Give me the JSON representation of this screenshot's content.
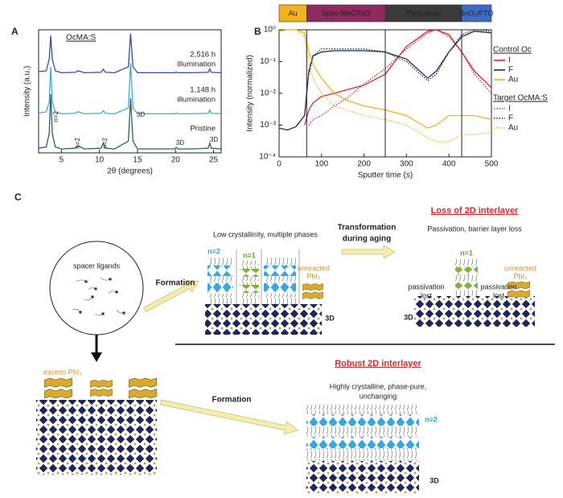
{
  "panel_labels": [
    "A",
    "B",
    "C"
  ],
  "chart_data": [
    {
      "type": "line",
      "title": "OcMA:S",
      "xlabel": "2θ (degrees)",
      "ylabel": "Intensity (a.u.)",
      "xlim": [
        2,
        26
      ],
      "xticks": [
        5,
        10,
        15,
        20,
        25
      ],
      "ylim": [
        0,
        3.15
      ],
      "x": [
        2,
        3,
        3.4,
        3.6,
        3.8,
        4.2,
        5,
        6.8,
        7.2,
        8,
        10.2,
        10.5,
        10.8,
        12,
        13.8,
        14.1,
        14.4,
        15,
        18,
        19.9,
        20.1,
        20.3,
        22,
        24.3,
        24.5,
        24.7,
        26
      ],
      "series": [
        {
          "color": "#2f4fa0",
          "values": [
            2.08,
            2.1,
            2.4,
            3.0,
            2.4,
            2.1,
            2.05,
            2.06,
            2.1,
            2.05,
            2.06,
            2.14,
            2.06,
            2.05,
            2.2,
            3.05,
            2.2,
            2.05,
            2.05,
            2.05,
            2.07,
            2.05,
            2.05,
            2.06,
            2.15,
            2.06,
            2.05
          ]
        },
        {
          "color": "#3ab0c8",
          "values": [
            1.02,
            1.05,
            1.3,
            2.2,
            1.3,
            1.05,
            1.0,
            1.01,
            1.05,
            1.0,
            1.01,
            1.08,
            1.01,
            1.0,
            1.15,
            2.3,
            1.15,
            1.0,
            1.0,
            1.0,
            1.02,
            1.0,
            1.0,
            1.01,
            1.1,
            1.01,
            1.0
          ]
        },
        {
          "color": "#2a5d78",
          "values": [
            0.12,
            0.15,
            0.5,
            1.5,
            0.5,
            0.15,
            0.1,
            0.12,
            0.18,
            0.1,
            0.12,
            0.25,
            0.12,
            0.1,
            0.3,
            1.4,
            0.3,
            0.1,
            0.1,
            0.1,
            0.14,
            0.1,
            0.1,
            0.12,
            0.25,
            0.12,
            0.1
          ]
        }
      ],
      "curve_labels": [
        {
          "lines": [
            "2,516 h",
            "illumination"
          ],
          "color": "#2f4fa0"
        },
        {
          "lines": [
            "1,148 h",
            "illumination"
          ],
          "color": "#3ab0c8"
        },
        {
          "lines": [
            "Pristine"
          ],
          "color": "#2f4fa0"
        }
      ],
      "peak_labels": [
        "n=2",
        "n=2",
        "n=2",
        "3D",
        "3D",
        "3D"
      ]
    },
    {
      "type": "line",
      "xlabel": "Sputter time (s)",
      "ylabel": "Intensity (normalized)",
      "xlim": [
        0,
        500
      ],
      "xticks": [
        0,
        100,
        200,
        300,
        400,
        500
      ],
      "ylim": [
        0.0001,
        1
      ],
      "log_y": true,
      "yticks": [
        {
          "value": 0.0001,
          "label": "10⁻⁴"
        },
        {
          "value": 0.001,
          "label": "10⁻³"
        },
        {
          "value": 0.01,
          "label": "10⁻²"
        },
        {
          "value": 0.1,
          "label": "10⁻¹"
        },
        {
          "value": 1,
          "label": "10⁰"
        }
      ],
      "vlines": [
        65,
        250,
        430
      ],
      "layers": [
        {
          "name": "Au",
          "start": 0,
          "end": 65,
          "color": "#f2b21d"
        },
        {
          "name": "Spiro-MeOTAD",
          "start": 65,
          "end": 250,
          "color": "#8e2a5e"
        },
        {
          "name": "Perovskite",
          "start": 250,
          "end": 430,
          "color": "#3a3a3a"
        },
        {
          "name": "SnO₂/FTO",
          "start": 430,
          "end": 500,
          "color": "#3e6bc6"
        }
      ],
      "x": [
        0,
        20,
        40,
        60,
        70,
        80,
        100,
        130,
        160,
        200,
        250,
        300,
        350,
        370,
        400,
        430,
        460,
        500
      ],
      "series_groups": [
        {
          "name": "Control Oc",
          "style": "solid",
          "series": [
            {
              "name": "I",
              "color": "#e0252b",
              "values": [
                null,
                null,
                null,
                0.001,
                0.003,
                0.005,
                0.008,
                0.01,
                0.013,
                0.018,
                0.04,
                0.3,
                0.9,
                1,
                0.7,
                0.2,
                0.05,
                0.015
              ]
            },
            {
              "name": "F",
              "color": "#1e2858",
              "values": [
                0.0008,
                0.0007,
                0.0009,
                0.002,
                0.05,
                0.15,
                0.2,
                0.22,
                0.22,
                0.22,
                0.2,
                0.12,
                0.03,
                0.05,
                0.2,
                0.6,
                0.9,
                0.8
              ]
            },
            {
              "name": "Au",
              "color": "#f2b21d",
              "values": [
                0.9,
                1,
                1,
                0.8,
                0.2,
                0.08,
                0.03,
                0.01,
                0.006,
                0.004,
                0.003,
                0.002,
                0.0008,
                0.001,
                0.002,
                0.002,
                0.002,
                0.0015
              ]
            }
          ]
        },
        {
          "name": "Target OcMA:S",
          "style": "dotted",
          "series": [
            {
              "name": "I",
              "color": "#e0252b",
              "values": [
                null,
                null,
                null,
                null,
                0.001,
                0.0015,
                0.002,
                0.004,
                0.007,
                0.02,
                0.06,
                0.25,
                0.8,
                1,
                0.6,
                0.2,
                0.04,
                0.01
              ]
            },
            {
              "name": "F",
              "color": "#1e2858",
              "values": [
                null,
                null,
                null,
                null,
                0.04,
                0.15,
                0.25,
                0.25,
                0.25,
                0.25,
                0.2,
                0.1,
                0.025,
                0.04,
                0.2,
                0.7,
                1,
                0.9
              ]
            },
            {
              "name": "Au",
              "color": "#f2b21d",
              "values": [
                0.9,
                1,
                1,
                0.6,
                0.08,
                0.03,
                0.01,
                0.004,
                0.003,
                0.002,
                0.0015,
                0.001,
                0.0004,
                0.0003,
                0.0003,
                0.0005,
                0.0005,
                0.0006
              ]
            }
          ]
        }
      ]
    }
  ],
  "diagram": {
    "spacer": "spacer ligands",
    "formation_top": "Formation",
    "low": "Low crystallinity, multiple phases",
    "mid_n2": "n=2",
    "mid_n1": "n=1",
    "mid_pbi2": [
      "unreacted",
      "PbI₂"
    ],
    "mid_3d": "3D",
    "transform": [
      "Transformation",
      "during aging"
    ],
    "loss_title": "Loss of 2D interlayer",
    "loss_sub": "Passivation, barrier layer loss",
    "loss_n1": "n=1",
    "lost_left": [
      "passivation",
      "lost"
    ],
    "lost_right": [
      "passivation",
      "lost"
    ],
    "loss_pbi2": [
      "unreacted",
      "PbI₂"
    ],
    "loss_3d": "3D",
    "excess": "excess PbI₂",
    "formation_bottom": "Formation",
    "robust_title": "Robust 2D interlayer",
    "robust_sub": [
      "Highly crystalline, phase-pure,",
      "unchanging"
    ],
    "robust_n2": "n=2",
    "robust_3d": "3D"
  }
}
